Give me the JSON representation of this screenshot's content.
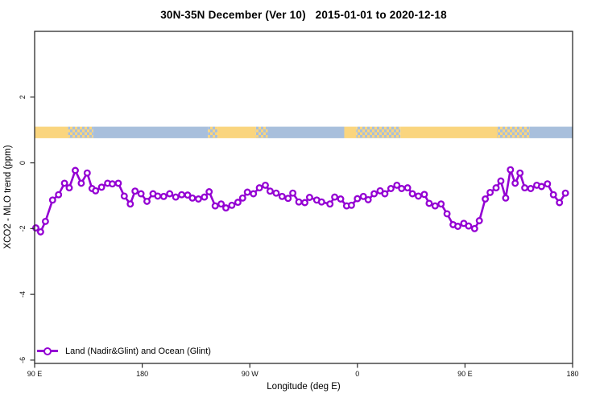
{
  "header": {
    "title": "30N-35N December (Ver 10)   2015-01-01 to 2020-12-18"
  },
  "chart_data": {
    "type": "line",
    "title": "30N-35N December (Ver 10)   2015-01-01 to 2020-12-18",
    "xlabel": "Longitude (deg E)",
    "ylabel": "XCO2 - MLO trend (ppm)",
    "grid": false,
    "x_axis": {
      "unit": "degrees east of 90E (wraps 90E → 180 → 90W → 0 → 90E → 180)",
      "range_deg": [
        0,
        450
      ],
      "ticks": [
        {
          "deg": 0,
          "label": "90 E"
        },
        {
          "deg": 90,
          "label": "180"
        },
        {
          "deg": 180,
          "label": "90 W"
        },
        {
          "deg": 270,
          "label": "0"
        },
        {
          "deg": 360,
          "label": "90 E"
        },
        {
          "deg": 450,
          "label": "180"
        }
      ]
    },
    "y_axis": {
      "range": [
        -6.1,
        4.0
      ],
      "ticks": [
        {
          "v": 2,
          "label": "2"
        },
        {
          "v": 0,
          "label": "0"
        },
        {
          "v": -2,
          "label": "-2"
        },
        {
          "v": -4,
          "label": "-4"
        },
        {
          "v": -6,
          "label": "-6"
        }
      ]
    },
    "legend": {
      "position": "bottom-left-inside",
      "label": "Land (Nadir&Glint) and Ocean (Glint)"
    },
    "colors": {
      "series": "#9400D3",
      "marker_fill": "#ffffff",
      "land": "#FAD57E",
      "ocean": "#A8BFDC",
      "axis": "#2b2b2b"
    },
    "map_strip": {
      "description": "land/ocean surface-type band drawn across the plot",
      "value_range": [
        0.75,
        1.1
      ],
      "segments": [
        {
          "from": 0,
          "to": 28,
          "type": "land"
        },
        {
          "from": 28,
          "to": 49,
          "type": "mixed"
        },
        {
          "from": 49,
          "to": 145,
          "type": "ocean"
        },
        {
          "from": 145,
          "to": 153,
          "type": "mixed"
        },
        {
          "from": 153,
          "to": 185,
          "type": "land"
        },
        {
          "from": 185,
          "to": 195,
          "type": "mixed"
        },
        {
          "from": 195,
          "to": 259,
          "type": "ocean"
        },
        {
          "from": 259,
          "to": 269,
          "type": "land"
        },
        {
          "from": 269,
          "to": 306,
          "type": "mixed"
        },
        {
          "from": 306,
          "to": 387,
          "type": "land"
        },
        {
          "from": 387,
          "to": 414,
          "type": "mixed"
        },
        {
          "from": 414,
          "to": 450,
          "type": "ocean"
        }
      ]
    },
    "series": [
      {
        "name": "Land (Nadir&Glint) and Ocean (Glint)",
        "marker": "open-circle",
        "points": [
          [
            1,
            -1.98
          ],
          [
            5,
            -2.1
          ],
          [
            9,
            -1.78
          ],
          [
            15,
            -1.13
          ],
          [
            20,
            -0.97
          ],
          [
            25,
            -0.62
          ],
          [
            29,
            -0.76
          ],
          [
            34,
            -0.23
          ],
          [
            39,
            -0.62
          ],
          [
            44,
            -0.31
          ],
          [
            48,
            -0.78
          ],
          [
            51,
            -0.85
          ],
          [
            56,
            -0.74
          ],
          [
            61,
            -0.62
          ],
          [
            65,
            -0.64
          ],
          [
            70,
            -0.62
          ],
          [
            75,
            -1.01
          ],
          [
            80,
            -1.25
          ],
          [
            84,
            -0.86
          ],
          [
            89,
            -0.94
          ],
          [
            94,
            -1.17
          ],
          [
            99,
            -0.94
          ],
          [
            103,
            -1.01
          ],
          [
            108,
            -1.02
          ],
          [
            113,
            -0.94
          ],
          [
            118,
            -1.04
          ],
          [
            123,
            -0.97
          ],
          [
            128,
            -0.98
          ],
          [
            132,
            -1.07
          ],
          [
            137,
            -1.1
          ],
          [
            142,
            -1.04
          ],
          [
            146,
            -0.88
          ],
          [
            151,
            -1.31
          ],
          [
            156,
            -1.25
          ],
          [
            160,
            -1.37
          ],
          [
            165,
            -1.29
          ],
          [
            170,
            -1.2
          ],
          [
            174,
            -1.07
          ],
          [
            178,
            -0.89
          ],
          [
            183,
            -0.94
          ],
          [
            188,
            -0.76
          ],
          [
            193,
            -0.68
          ],
          [
            197,
            -0.86
          ],
          [
            202,
            -0.92
          ],
          [
            207,
            -1.02
          ],
          [
            212,
            -1.08
          ],
          [
            216,
            -0.92
          ],
          [
            221,
            -1.19
          ],
          [
            226,
            -1.21
          ],
          [
            230,
            -1.05
          ],
          [
            236,
            -1.13
          ],
          [
            240,
            -1.19
          ],
          [
            247,
            -1.25
          ],
          [
            251,
            -1.04
          ],
          [
            256,
            -1.1
          ],
          [
            261,
            -1.31
          ],
          [
            265,
            -1.29
          ],
          [
            270,
            -1.09
          ],
          [
            275,
            -1.02
          ],
          [
            279,
            -1.12
          ],
          [
            284,
            -0.94
          ],
          [
            289,
            -0.85
          ],
          [
            293,
            -0.94
          ],
          [
            298,
            -0.78
          ],
          [
            303,
            -0.68
          ],
          [
            307,
            -0.78
          ],
          [
            312,
            -0.76
          ],
          [
            316,
            -0.94
          ],
          [
            321,
            -1.01
          ],
          [
            326,
            -0.96
          ],
          [
            330,
            -1.23
          ],
          [
            335,
            -1.31
          ],
          [
            340,
            -1.25
          ],
          [
            345,
            -1.55
          ],
          [
            350,
            -1.88
          ],
          [
            354,
            -1.93
          ],
          [
            359,
            -1.84
          ],
          [
            363,
            -1.92
          ],
          [
            368,
            -2.0
          ],
          [
            372,
            -1.76
          ],
          [
            377,
            -1.1
          ],
          [
            381,
            -0.9
          ],
          [
            386,
            -0.76
          ],
          [
            390,
            -0.55
          ],
          [
            394,
            -1.07
          ],
          [
            398,
            -0.21
          ],
          [
            402,
            -0.62
          ],
          [
            406,
            -0.31
          ],
          [
            410,
            -0.76
          ],
          [
            415,
            -0.78
          ],
          [
            420,
            -0.68
          ],
          [
            424,
            -0.72
          ],
          [
            429,
            -0.64
          ],
          [
            434,
            -0.97
          ],
          [
            439,
            -1.21
          ],
          [
            444,
            -0.92
          ]
        ]
      }
    ]
  }
}
